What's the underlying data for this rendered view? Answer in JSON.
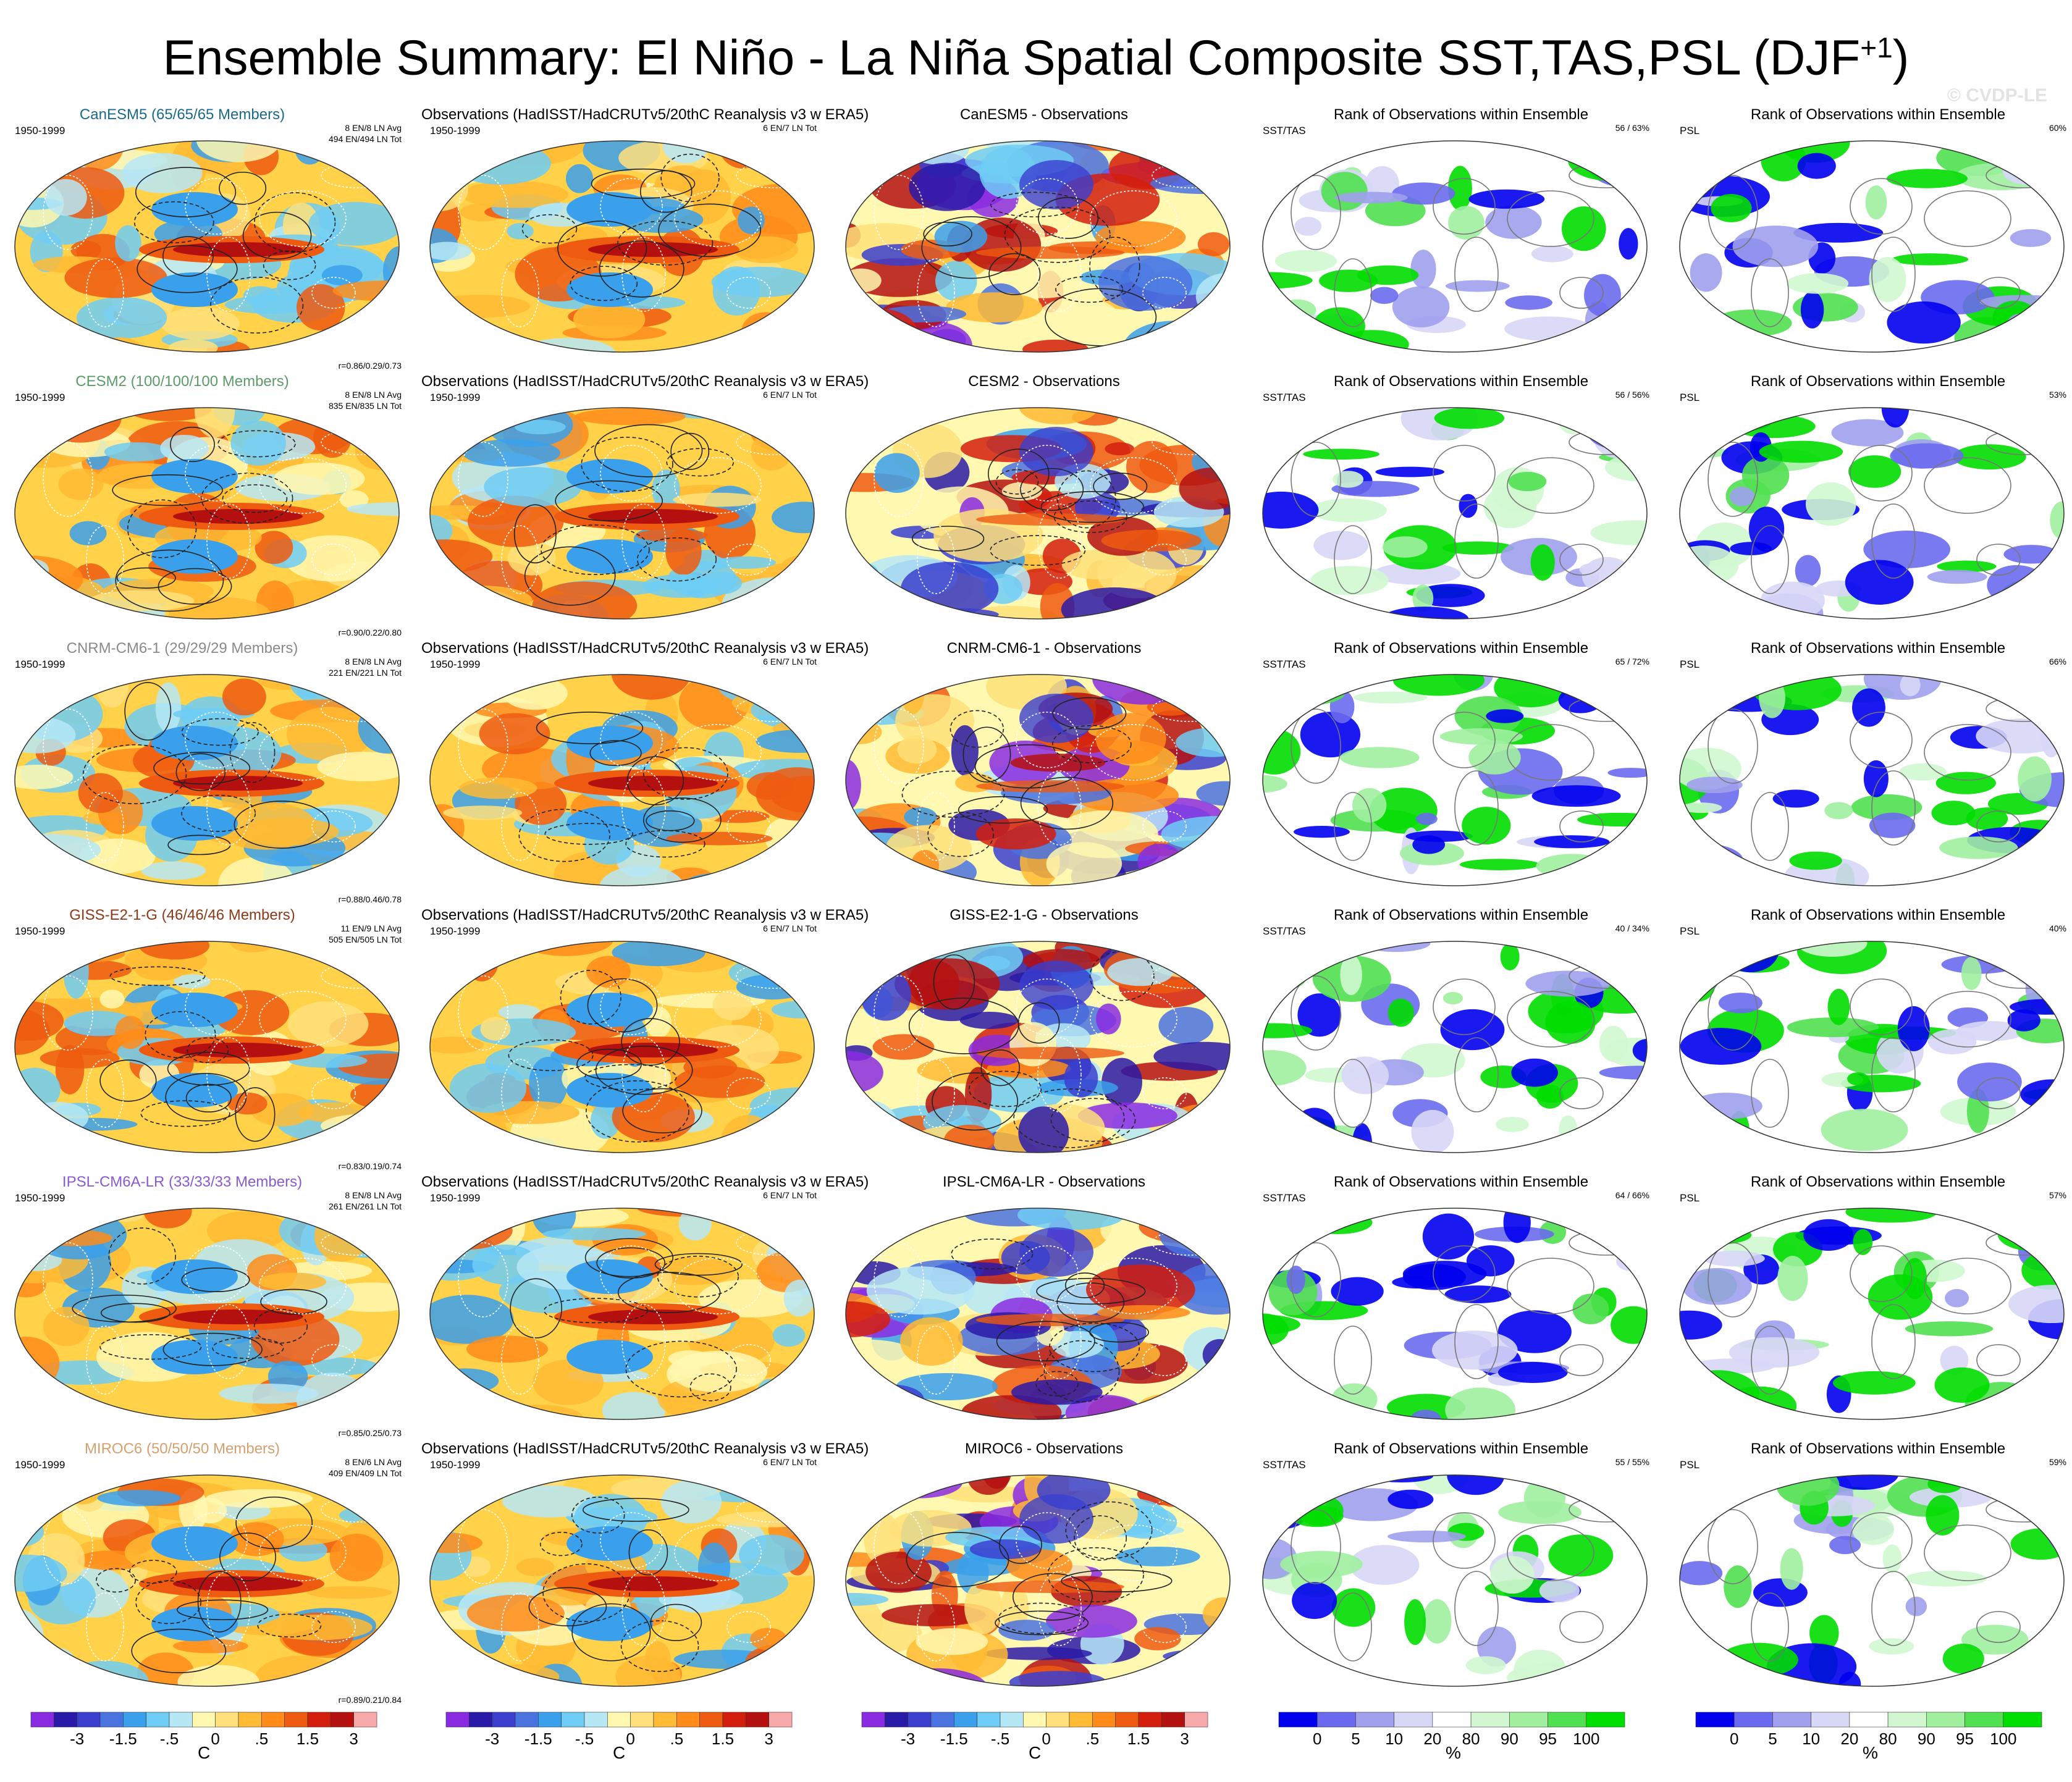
{
  "title": "Ensemble Summary: El Niño - La Niña Spatial Composite SST,TAS,PSL (DJF",
  "title_sup": "+1",
  "title_tail": ")",
  "watermark": "© CVDP-LE",
  "colors": {
    "diverging": [
      "#8a2be2",
      "#2a1aa8",
      "#3a3fd0",
      "#4a72e0",
      "#3aa0ec",
      "#6fcdf5",
      "#b6e7f7",
      "#fff8b0",
      "#ffe07a",
      "#ffbb33",
      "#ff8c1a",
      "#ee5a10",
      "#d41e0e",
      "#b51010",
      "#f7a9a9"
    ],
    "rank": [
      "#0000ee",
      "#6a6aee",
      "#a0a0ee",
      "#d7d7f7",
      "#ffffff",
      "#d0f7d0",
      "#a0f0a0",
      "#50e050",
      "#00dd00"
    ]
  },
  "rows": [
    {
      "model": "CanESM5 (65/65/65 Members)",
      "model_color": "#1a6a8a",
      "period": "1950-1999",
      "members_avg": "8 EN/8 LN Avg",
      "members_tot": "494 EN/494 LN Tot",
      "corr": "r=0.86/0.29/0.73",
      "diff_title": "CanESM5 - Observations",
      "rank_sst": "56 /  63%",
      "rank_psl": "60%"
    },
    {
      "model": "CESM2 (100/100/100 Members)",
      "model_color": "#5d9a6a",
      "period": "1950-1999",
      "members_avg": "8 EN/8 LN Avg",
      "members_tot": "835 EN/835 LN Tot",
      "corr": "r=0.90/0.22/0.80",
      "diff_title": "CESM2 - Observations",
      "rank_sst": "56 /  56%",
      "rank_psl": "53%"
    },
    {
      "model": "CNRM-CM6-1 (29/29/29 Members)",
      "model_color": "#8a8a8a",
      "period": "1950-1999",
      "members_avg": "8 EN/8 LN Avg",
      "members_tot": "221 EN/221 LN Tot",
      "corr": "r=0.88/0.46/0.78",
      "diff_title": "CNRM-CM6-1 - Observations",
      "rank_sst": "65 /  72%",
      "rank_psl": "66%"
    },
    {
      "model": "GISS-E2-1-G (46/46/46 Members)",
      "model_color": "#8b3a1a",
      "period": "1950-1999",
      "members_avg": "11 EN/9 LN Avg",
      "members_tot": "505 EN/505 LN Tot",
      "corr": "r=0.83/0.19/0.74",
      "diff_title": "GISS-E2-1-G - Observations",
      "rank_sst": "40 /  34%",
      "rank_psl": "40%"
    },
    {
      "model": "IPSL-CM6A-LR (33/33/33 Members)",
      "model_color": "#8a5ad0",
      "period": "1950-1999",
      "members_avg": "8 EN/8 LN Avg",
      "members_tot": "261 EN/261 LN Tot",
      "corr": "r=0.85/0.25/0.73",
      "diff_title": "IPSL-CM6A-LR - Observations",
      "rank_sst": "64 /  66%",
      "rank_psl": "57%"
    },
    {
      "model": "MIROC6 (50/50/50 Members)",
      "model_color": "#d4a070",
      "period": "1950-1999",
      "members_avg": "8 EN/6 LN Avg",
      "members_tot": "409 EN/409 LN Tot",
      "corr": "r=0.89/0.21/0.84",
      "diff_title": "MIROC6 - Observations",
      "rank_sst": "55 /  55%",
      "rank_psl": "59%"
    }
  ],
  "obs": {
    "title": "Observations (HadISST/HadCRUTv5/20thC Reanalysis v3 w ERA5)",
    "period": "1950-1999",
    "members": "6 EN/7 LN Tot"
  },
  "rank": {
    "title": "Rank of Observations within Ensemble",
    "sst_label": "SST/TAS",
    "psl_label": "PSL"
  },
  "colorbars": {
    "diverging": {
      "ticks": [
        "-3",
        "-1.5",
        "-.5",
        "0",
        ".5",
        "1.5",
        "3"
      ],
      "unit": "C"
    },
    "rank": {
      "ticks": [
        "0",
        "5",
        "10",
        "20",
        "80",
        "90",
        "95",
        "100"
      ],
      "unit": "%"
    }
  },
  "chart_data": {
    "type": "heatmap",
    "layout": "6 rows x 5 columns of global maps",
    "columns": [
      "Model ensemble composite",
      "Observations composite",
      "Model - Observations",
      "Rank of Observations within Ensemble (SST/TAS)",
      "Rank of Observations within Ensemble (PSL)"
    ],
    "diverging_scale_C": [
      -3,
      -1.5,
      -0.5,
      0,
      0.5,
      1.5,
      3
    ],
    "rank_scale_percent": [
      0,
      5,
      10,
      20,
      80,
      90,
      95,
      100
    ]
  }
}
